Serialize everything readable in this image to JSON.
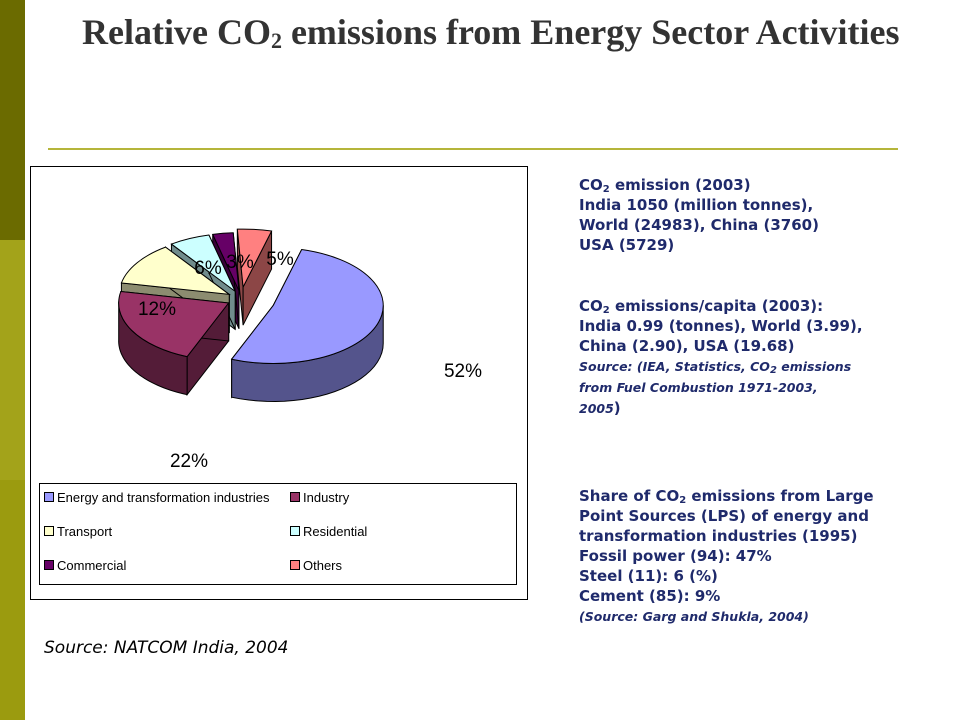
{
  "title": {
    "part1": "Relative CO",
    "sub": "2",
    "part2": " emissions from Energy Sector Activities"
  },
  "colors": {
    "bar_dark": "#6b6b00",
    "bar_mid": "#a3a31a",
    "rule": "#b5b53a",
    "info_text": "#1f2a6b"
  },
  "chart_data": {
    "type": "pie",
    "title": "",
    "slices": [
      {
        "label": "Energy and transformation industries",
        "value": 52,
        "display": "52%",
        "color": "#9999ff"
      },
      {
        "label": "Industry",
        "value": 22,
        "display": "22%",
        "color": "#993366"
      },
      {
        "label": "Transport",
        "value": 12,
        "display": "12%",
        "color": "#ffffcc"
      },
      {
        "label": "Residential",
        "value": 6,
        "display": "6%",
        "color": "#ccffff"
      },
      {
        "label": "Commercial",
        "value": 3,
        "display": "3%",
        "color": "#660066"
      },
      {
        "label": "Others",
        "value": 5,
        "display": "5%",
        "color": "#ff8080"
      }
    ],
    "legend_position": "bottom",
    "style": "3d-exploded"
  },
  "source_left": "Source: NATCOM India, 2004",
  "info": {
    "emission": {
      "heading_pre": "CO",
      "heading_sub": "2",
      "heading_post": " emission (2003)",
      "lines": [
        "India 1050 (million tonnes),",
        "World (24983), China (3760)",
        "USA (5729)"
      ]
    },
    "per_capita": {
      "heading_pre": "CO",
      "heading_sub": "2",
      "heading_post": " emissions/capita (2003):",
      "lines": [
        "India 0.99 (tonnes), World (3.99),",
        "China (2.90), USA (19.68)"
      ],
      "source_pre": "Source: (IEA, Statistics, CO",
      "source_sub": "2",
      "source_post": " emissions",
      "source_line2": "from Fuel Combustion 1971-2003,",
      "source_line3_italic": "2005",
      "source_line3_end": ")"
    },
    "lps": {
      "heading_pre": "Share of CO",
      "heading_sub": "2",
      "heading_post": " emissions from Large",
      "lines": [
        "Point Sources (LPS) of energy and",
        "transformation industries (1995)",
        "Fossil power (94): 47%",
        "Steel (11): 6 (%)",
        "Cement (85): 9%"
      ],
      "source": "(Source: Garg and Shukla, 2004)"
    }
  }
}
